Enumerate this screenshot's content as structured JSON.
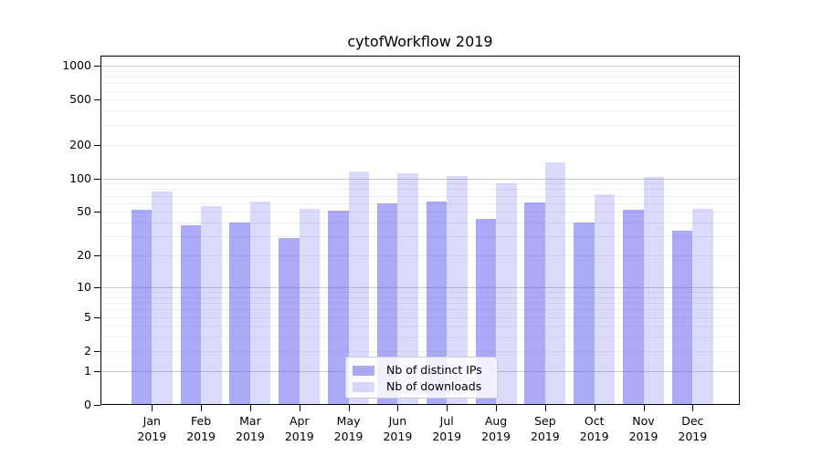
{
  "title": "cytofWorkflow 2019",
  "legend": {
    "items": [
      {
        "label": "Nb of distinct IPs",
        "series": "ips"
      },
      {
        "label": "Nb of downloads",
        "series": "downloads"
      }
    ]
  },
  "colors": {
    "ips_bar": "rgba(85,85,238,0.5)",
    "downloads_bar": "rgba(85,85,238,0.22)",
    "grid_major": "#c9c9c9",
    "grid_minor": "#eeeeee",
    "spine": "#000000",
    "legend_border": "#cccccc"
  },
  "chart_data": {
    "type": "bar",
    "title": "cytofWorkflow 2019",
    "categories": [
      "Jan 2019",
      "Feb 2019",
      "Mar 2019",
      "Apr 2019",
      "May 2019",
      "Jun 2019",
      "Jul 2019",
      "Aug 2019",
      "Sep 2019",
      "Oct 2019",
      "Nov 2019",
      "Dec 2019"
    ],
    "series": [
      {
        "name": "Nb of distinct IPs",
        "values": [
          52,
          38,
          40,
          29,
          51,
          60,
          62,
          43,
          61,
          40,
          52,
          34
        ]
      },
      {
        "name": "Nb of downloads",
        "values": [
          76,
          56,
          62,
          53,
          116,
          111,
          104,
          90,
          140,
          72,
          103,
          53
        ]
      }
    ],
    "xlabel": "",
    "ylabel": "",
    "yscale": "log1p",
    "yticks": [
      0,
      1,
      2,
      5,
      10,
      20,
      50,
      100,
      200,
      500,
      1000
    ],
    "ylim": [
      0,
      1230
    ],
    "grid": true,
    "legend_position": "lower center"
  }
}
